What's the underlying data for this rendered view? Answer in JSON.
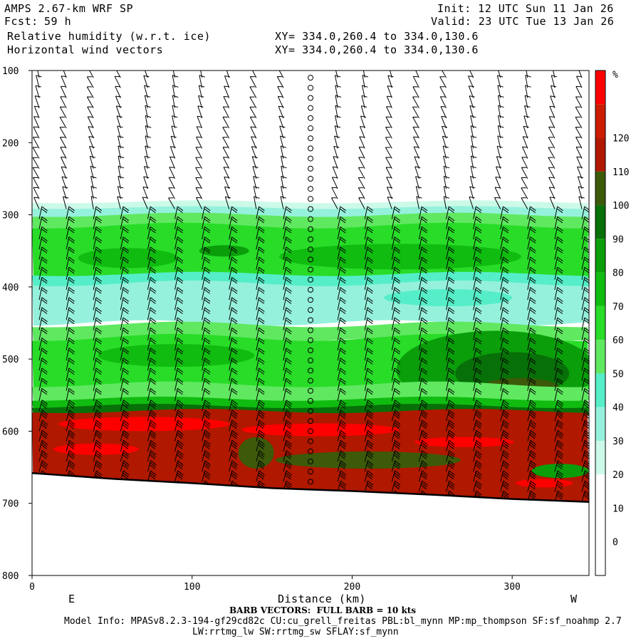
{
  "header": {
    "model": "AMPS 2.67-km WRF SP",
    "fcst_label": "Fcst:",
    "fcst_value": "59 h",
    "init": "Init: 12 UTC Sun 11 Jan 26",
    "valid": "Valid: 23 UTC Tue 13 Jan 26",
    "field1": "Relative humidity (w.r.t. ice)",
    "field2": "Horizontal wind vectors",
    "xy1": "XY= 334.0,260.4 to 334.0,130.6",
    "xy2": "XY= 334.0,260.4 to 334.0,130.6"
  },
  "footer": {
    "xlabel_left": "E",
    "xlabel": "Distance (km)",
    "xlabel_right": "W",
    "barb_note": "BARB VECTORS:  FULL BARB = 10 kts",
    "model_info": "Model Info: MPASv8.2.3-194-gf29cd82c CU:cu_grell_freitas PBL:bl_mynn MP:mp_thompson SF:sf_noahmp 2.7",
    "model_info2": "LW:rrtmg_lw SW:rrtmg_sw SFLAY:sf_mynn"
  },
  "chart_data": {
    "type": "heatmap",
    "title": "Relative humidity (w.r.t. ice)",
    "xlabel": "Distance (km)",
    "ylabel": "",
    "xlim": [
      0,
      348
    ],
    "ylim": [
      800,
      100
    ],
    "x_ticks": [
      0,
      100,
      200,
      300
    ],
    "y_ticks": [
      100,
      200,
      300,
      400,
      500,
      600,
      700,
      800
    ],
    "colorbar": {
      "unit": "%",
      "ticks": [
        0,
        10,
        20,
        30,
        40,
        50,
        60,
        70,
        80,
        90,
        100,
        110,
        120
      ],
      "colors": [
        "#ffffff",
        "#ffffff",
        "#ffffff",
        "#ccfae8",
        "#95f1dc",
        "#55eec8",
        "#60e860",
        "#28dc28",
        "#10bc10",
        "#0a9e0a",
        "#087008",
        "#3c5a0a",
        "#b01800",
        "#cc1c00",
        "#ff0000"
      ]
    },
    "layers": [
      {
        "p_top": 100,
        "p_bottom": 285,
        "rh": "<30"
      },
      {
        "p_top": 285,
        "p_bottom": 300,
        "rh": "30-50"
      },
      {
        "p_top": 300,
        "p_bottom": 350,
        "rh": "60-80"
      },
      {
        "p_top": 350,
        "p_bottom": 380,
        "rh": "80-90"
      },
      {
        "p_top": 380,
        "p_bottom": 460,
        "rh": "40-70"
      },
      {
        "p_top": 460,
        "p_bottom": 570,
        "rh": "70-100"
      },
      {
        "p_top": 570,
        "p_bottom": 700,
        "rh": "100-130"
      }
    ],
    "terrain_pressure": [
      [
        0,
        658
      ],
      [
        50,
        666
      ],
      [
        100,
        672
      ],
      [
        150,
        679
      ],
      [
        200,
        683
      ],
      [
        250,
        688
      ],
      [
        300,
        694
      ],
      [
        348,
        698
      ]
    ],
    "annotations": [
      "FULL BARB = 10 kts"
    ]
  }
}
